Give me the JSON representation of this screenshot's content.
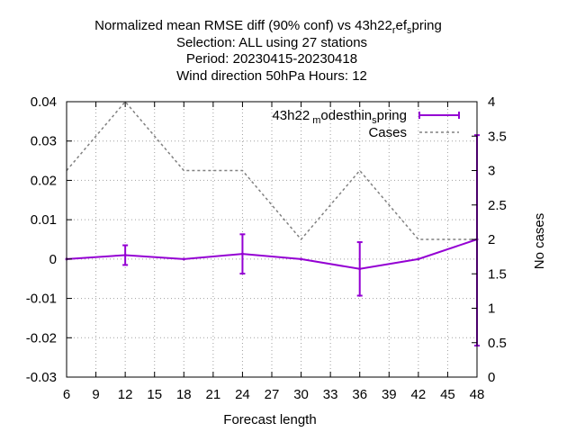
{
  "chart_data": {
    "type": "line",
    "title_lines": [
      "Normalized mean RMSE diff (90% conf) vs 43h22",
      "Selection: ALL using     27 stations",
      "Period: 20230415-20230418",
      "Wind direction 50hPa   Hours:  12"
    ],
    "title_suffix": {
      "sub1": "r",
      "mid1": "ef",
      "sub2": "s",
      "end": "pring"
    },
    "xlabel": "Forecast length",
    "ylabel_left": "",
    "ylabel_right": "No cases",
    "xlim": [
      6,
      48
    ],
    "xticks": [
      6,
      9,
      12,
      15,
      18,
      21,
      24,
      27,
      30,
      33,
      36,
      39,
      42,
      45,
      48
    ],
    "ylim": [
      -0.03,
      0.04
    ],
    "yticks": [
      "-0.03",
      "-0.02",
      "-0.01",
      "0",
      "0.01",
      "0.02",
      "0.03",
      "0.04"
    ],
    "y2lim": [
      0,
      4
    ],
    "y2ticks": [
      "0",
      "0.5",
      "1",
      "1.5",
      "2",
      "2.5",
      "3",
      "3.5",
      "4"
    ],
    "grid": true,
    "legend_position": "top-right",
    "series": [
      {
        "name": "43h22_modesthin_spring",
        "legend_parts": {
          "a": "43h22",
          "sub1": "m",
          "b": "odesthin",
          "sub2": "s",
          "c": "pring"
        },
        "color": "#9400d3",
        "axis": "left",
        "style": "line-errorbars",
        "x": [
          6,
          12,
          18,
          24,
          30,
          36,
          42,
          48
        ],
        "y": [
          0.0,
          0.001,
          0.0,
          0.0013,
          0.0,
          -0.0025,
          0.0,
          0.005
        ],
        "err_low": [
          null,
          -0.0015,
          null,
          -0.0037,
          null,
          -0.0093,
          null,
          -0.022
        ],
        "err_high": [
          null,
          0.0035,
          null,
          0.0063,
          null,
          0.0043,
          null,
          0.0315
        ]
      },
      {
        "name": "Cases",
        "color": "#808080",
        "axis": "right",
        "style": "dashed",
        "x": [
          6,
          12,
          18,
          24,
          30,
          36,
          42,
          48
        ],
        "y": [
          3,
          4,
          3,
          3,
          2,
          3,
          2,
          2
        ]
      }
    ]
  }
}
